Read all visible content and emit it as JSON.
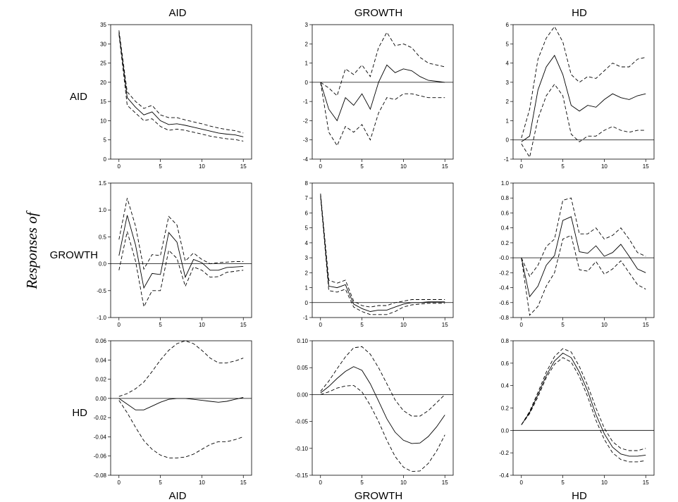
{
  "row_axis_title": "Responses of",
  "column_titles_top": [
    "AID",
    "GROWTH",
    "HD"
  ],
  "column_titles_bottom": [
    "AID",
    "GROWTH",
    "HD"
  ],
  "row_labels": [
    "AID",
    "GROWTH",
    "HD"
  ],
  "chart_data": [
    {
      "type": "line",
      "row": "AID",
      "column": "AID",
      "x": [
        0,
        1,
        2,
        3,
        4,
        5,
        6,
        7,
        8,
        9,
        10,
        11,
        12,
        13,
        14,
        15
      ],
      "xticks": [
        0,
        5,
        10,
        15
      ],
      "ylim": [
        0,
        35
      ],
      "yticks": [
        "0",
        "5",
        "10",
        "15",
        "20",
        "25",
        "30",
        "35"
      ],
      "zero_line": false,
      "series": [
        {
          "values": [
            33,
            16,
            13.5,
            11.5,
            12.3,
            10,
            9,
            9.2,
            8.8,
            8.3,
            7.8,
            7.3,
            6.8,
            6.5,
            6.3,
            5.8
          ],
          "style": "solid"
        },
        {
          "values": [
            33.5,
            17.5,
            15,
            13.2,
            14,
            11.5,
            10.8,
            10.8,
            10.2,
            9.7,
            9.2,
            8.6,
            8.1,
            7.7,
            7.4,
            6.8
          ],
          "style": "dashed"
        },
        {
          "values": [
            32.5,
            14,
            12,
            10,
            10.5,
            8.5,
            7.5,
            7.8,
            7.5,
            7,
            6.5,
            6,
            5.6,
            5.3,
            5.1,
            4.7
          ],
          "style": "dashed"
        }
      ]
    },
    {
      "type": "line",
      "row": "AID",
      "column": "GROWTH",
      "x": [
        0,
        1,
        2,
        3,
        4,
        5,
        6,
        7,
        8,
        9,
        10,
        11,
        12,
        13,
        14,
        15
      ],
      "xticks": [
        0,
        5,
        10,
        15
      ],
      "ylim": [
        -4,
        3
      ],
      "yticks": [
        "-4",
        "-3",
        "-2",
        "-1",
        "0",
        "1",
        "2",
        "3"
      ],
      "zero_line": true,
      "series": [
        {
          "values": [
            0,
            -1.4,
            -2,
            -0.8,
            -1.2,
            -0.6,
            -1.4,
            0,
            0.9,
            0.5,
            0.7,
            0.6,
            0.3,
            0.1,
            0.05,
            0
          ],
          "style": "solid"
        },
        {
          "values": [
            0,
            -0.3,
            -0.7,
            0.7,
            0.4,
            0.9,
            0.3,
            1.8,
            2.6,
            1.9,
            2,
            1.8,
            1.3,
            1,
            0.9,
            0.8
          ],
          "style": "dashed"
        },
        {
          "values": [
            0,
            -2.6,
            -3.3,
            -2.3,
            -2.6,
            -2.2,
            -3,
            -1.6,
            -0.8,
            -0.9,
            -0.6,
            -0.6,
            -0.7,
            -0.8,
            -0.8,
            -0.8
          ],
          "style": "dashed"
        }
      ]
    },
    {
      "type": "line",
      "row": "AID",
      "column": "HD",
      "x": [
        0,
        1,
        2,
        3,
        4,
        5,
        6,
        7,
        8,
        9,
        10,
        11,
        12,
        13,
        14,
        15
      ],
      "xticks": [
        0,
        5,
        10,
        15
      ],
      "ylim": [
        -1,
        6
      ],
      "yticks": [
        "-1",
        "0",
        "1",
        "2",
        "3",
        "4",
        "5",
        "6"
      ],
      "zero_line": true,
      "series": [
        {
          "values": [
            -0.1,
            0.2,
            2.6,
            3.8,
            4.4,
            3.4,
            1.8,
            1.5,
            1.8,
            1.7,
            2.1,
            2.4,
            2.2,
            2.1,
            2.3,
            2.4
          ],
          "style": "solid"
        },
        {
          "values": [
            0.1,
            1.6,
            4.2,
            5.3,
            5.9,
            5.1,
            3.4,
            3,
            3.3,
            3.2,
            3.6,
            4,
            3.8,
            3.8,
            4.2,
            4.3
          ],
          "style": "dashed"
        },
        {
          "values": [
            -0.2,
            -0.9,
            1.1,
            2.3,
            2.9,
            2.3,
            0.3,
            -0.1,
            0.2,
            0.2,
            0.5,
            0.7,
            0.5,
            0.4,
            0.5,
            0.5
          ],
          "style": "dashed"
        }
      ]
    },
    {
      "type": "line",
      "row": "GROWTH",
      "column": "AID",
      "x": [
        0,
        1,
        2,
        3,
        4,
        5,
        6,
        7,
        8,
        9,
        10,
        11,
        12,
        13,
        14,
        15
      ],
      "xticks": [
        0,
        5,
        10,
        15
      ],
      "ylim": [
        -1,
        1.5
      ],
      "yticks": [
        "-1.0",
        "-0.5",
        "0.0",
        "0.5",
        "1.0",
        "1.5"
      ],
      "zero_line": true,
      "series": [
        {
          "values": [
            0.15,
            0.9,
            0.35,
            -0.45,
            -0.18,
            -0.2,
            0.58,
            0.4,
            -0.25,
            0.08,
            0.02,
            -0.12,
            -0.12,
            -0.07,
            -0.06,
            -0.05
          ],
          "style": "solid"
        },
        {
          "values": [
            0.45,
            1.22,
            0.7,
            -0.1,
            0.17,
            0.15,
            0.88,
            0.72,
            0.05,
            0.2,
            0.08,
            0,
            0.02,
            0.03,
            0.04,
            0.04
          ],
          "style": "dashed"
        },
        {
          "values": [
            -0.12,
            0.6,
            0.05,
            -0.8,
            -0.5,
            -0.5,
            0.25,
            0.1,
            -0.42,
            -0.06,
            -0.12,
            -0.25,
            -0.24,
            -0.16,
            -0.14,
            -0.12
          ],
          "style": "dashed"
        }
      ]
    },
    {
      "type": "line",
      "row": "GROWTH",
      "column": "GROWTH",
      "x": [
        0,
        1,
        2,
        3,
        4,
        5,
        6,
        7,
        8,
        9,
        10,
        11,
        12,
        13,
        14,
        15
      ],
      "xticks": [
        0,
        5,
        10,
        15
      ],
      "ylim": [
        -1,
        8
      ],
      "yticks": [
        "-1",
        "0",
        "1",
        "2",
        "3",
        "4",
        "5",
        "6",
        "7",
        "8"
      ],
      "zero_line": true,
      "series": [
        {
          "values": [
            7.2,
            1.1,
            1,
            1.2,
            -0.1,
            -0.4,
            -0.6,
            -0.5,
            -0.5,
            -0.3,
            -0.1,
            0,
            0,
            0.05,
            0.05,
            0.05
          ],
          "style": "solid"
        },
        {
          "values": [
            7.3,
            1.5,
            1.3,
            1.5,
            0.1,
            -0.2,
            -0.3,
            -0.2,
            -0.2,
            0,
            0.1,
            0.2,
            0.2,
            0.2,
            0.2,
            0.2
          ],
          "style": "dashed"
        },
        {
          "values": [
            7.1,
            0.8,
            0.7,
            0.9,
            -0.3,
            -0.6,
            -0.8,
            -0.8,
            -0.8,
            -0.6,
            -0.3,
            -0.15,
            -0.1,
            -0.05,
            -0.05,
            -0.05
          ],
          "style": "dashed"
        }
      ]
    },
    {
      "type": "line",
      "row": "GROWTH",
      "column": "HD",
      "x": [
        0,
        1,
        2,
        3,
        4,
        5,
        6,
        7,
        8,
        9,
        10,
        11,
        12,
        13,
        14,
        15
      ],
      "xticks": [
        0,
        5,
        10,
        15
      ],
      "ylim": [
        -0.8,
        1
      ],
      "yticks": [
        "-0.8",
        "-0.6",
        "-0.4",
        "-0.2",
        "-0.0",
        "0.2",
        "0.4",
        "0.6",
        "0.8",
        "1.0"
      ],
      "zero_line": true,
      "series": [
        {
          "values": [
            0,
            -0.52,
            -0.38,
            -0.1,
            0.03,
            0.5,
            0.55,
            0.08,
            0.06,
            0.16,
            0.02,
            0.07,
            0.18,
            0.02,
            -0.15,
            -0.2
          ],
          "style": "solid"
        },
        {
          "values": [
            0,
            -0.25,
            -0.1,
            0.15,
            0.25,
            0.77,
            0.8,
            0.32,
            0.32,
            0.4,
            0.25,
            0.3,
            0.4,
            0.25,
            0.07,
            0.02
          ],
          "style": "dashed"
        },
        {
          "values": [
            0,
            -0.77,
            -0.65,
            -0.38,
            -0.2,
            0.25,
            0.3,
            -0.16,
            -0.18,
            -0.05,
            -0.22,
            -0.15,
            -0.04,
            -0.2,
            -0.36,
            -0.42
          ],
          "style": "dashed"
        }
      ]
    },
    {
      "type": "line",
      "row": "HD",
      "column": "AID",
      "x": [
        0,
        1,
        2,
        3,
        4,
        5,
        6,
        7,
        8,
        9,
        10,
        11,
        12,
        13,
        14,
        15
      ],
      "xticks": [
        0,
        5,
        10,
        15
      ],
      "ylim": [
        -0.08,
        0.06
      ],
      "yticks": [
        "-0.08",
        "-0.06",
        "-0.04",
        "-0.02",
        "0.00",
        "0.02",
        "0.04",
        "0.06"
      ],
      "zero_line": true,
      "series": [
        {
          "values": [
            0,
            -0.006,
            -0.012,
            -0.012,
            -0.008,
            -0.004,
            -0.001,
            0,
            0,
            -0.001,
            -0.002,
            -0.003,
            -0.004,
            -0.003,
            -0.001,
            0.001
          ],
          "style": "solid"
        },
        {
          "values": [
            0.002,
            0.005,
            0.01,
            0.017,
            0.028,
            0.04,
            0.05,
            0.057,
            0.06,
            0.057,
            0.05,
            0.042,
            0.037,
            0.037,
            0.039,
            0.042
          ],
          "style": "dashed"
        },
        {
          "values": [
            -0.002,
            -0.015,
            -0.03,
            -0.044,
            -0.053,
            -0.059,
            -0.062,
            -0.062,
            -0.061,
            -0.058,
            -0.053,
            -0.048,
            -0.045,
            -0.045,
            -0.043,
            -0.04
          ],
          "style": "dashed"
        }
      ]
    },
    {
      "type": "line",
      "row": "HD",
      "column": "GROWTH",
      "x": [
        0,
        1,
        2,
        3,
        4,
        5,
        6,
        7,
        8,
        9,
        10,
        11,
        12,
        13,
        14,
        15
      ],
      "xticks": [
        0,
        5,
        10,
        15
      ],
      "ylim": [
        -0.15,
        0.1
      ],
      "yticks": [
        "-0.15",
        "-0.10",
        "-0.05",
        "0.00",
        "0.05",
        "0.10"
      ],
      "zero_line": true,
      "series": [
        {
          "values": [
            0.003,
            0.015,
            0.03,
            0.043,
            0.052,
            0.045,
            0.02,
            -0.012,
            -0.045,
            -0.07,
            -0.085,
            -0.091,
            -0.09,
            -0.078,
            -0.06,
            -0.038
          ],
          "style": "solid"
        },
        {
          "values": [
            0.006,
            0.025,
            0.048,
            0.07,
            0.087,
            0.089,
            0.075,
            0.05,
            0.02,
            -0.01,
            -0.03,
            -0.04,
            -0.04,
            -0.03,
            -0.015,
            0
          ],
          "style": "dashed"
        },
        {
          "values": [
            0,
            0.005,
            0.012,
            0.016,
            0.017,
            0.005,
            -0.02,
            -0.05,
            -0.085,
            -0.115,
            -0.135,
            -0.143,
            -0.142,
            -0.128,
            -0.105,
            -0.075
          ],
          "style": "dashed"
        }
      ]
    },
    {
      "type": "line",
      "row": "HD",
      "column": "HD",
      "x": [
        0,
        1,
        2,
        3,
        4,
        5,
        6,
        7,
        8,
        9,
        10,
        11,
        12,
        13,
        14,
        15
      ],
      "xticks": [
        0,
        5,
        10,
        15
      ],
      "ylim": [
        -0.4,
        0.8
      ],
      "yticks": [
        "-0.4",
        "-0.2",
        "0.0",
        "0.2",
        "0.4",
        "0.6",
        "0.8"
      ],
      "zero_line": true,
      "series": [
        {
          "values": [
            0.05,
            0.16,
            0.32,
            0.49,
            0.62,
            0.69,
            0.65,
            0.52,
            0.35,
            0.14,
            -0.03,
            -0.15,
            -0.21,
            -0.23,
            -0.23,
            -0.22
          ],
          "style": "solid"
        },
        {
          "values": [
            0.05,
            0.17,
            0.34,
            0.52,
            0.66,
            0.73,
            0.7,
            0.57,
            0.4,
            0.2,
            0.02,
            -0.1,
            -0.16,
            -0.18,
            -0.18,
            -0.16
          ],
          "style": "dashed"
        },
        {
          "values": [
            0.05,
            0.15,
            0.3,
            0.47,
            0.59,
            0.65,
            0.61,
            0.48,
            0.3,
            0.09,
            -0.08,
            -0.2,
            -0.26,
            -0.28,
            -0.28,
            -0.27
          ],
          "style": "dashed"
        }
      ]
    }
  ]
}
